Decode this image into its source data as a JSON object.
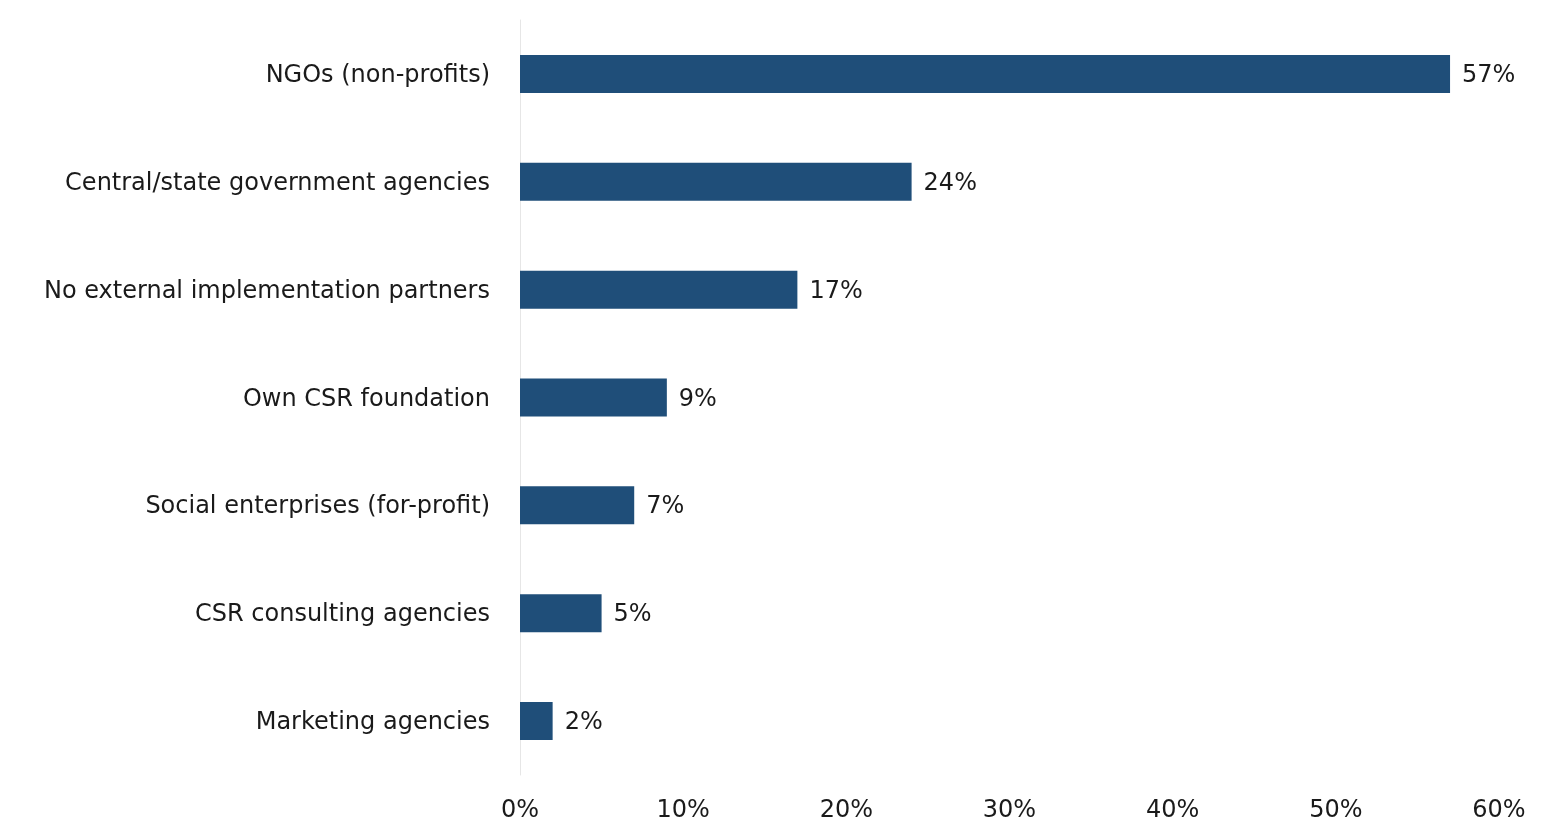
{
  "chart_data": {
    "type": "bar",
    "orientation": "horizontal",
    "categories": [
      "NGOs (non-profits)",
      "Central/state government agencies",
      "No external implementation partners",
      "Own CSR foundation",
      "Social enterprises (for-profit)",
      "CSR consulting agencies",
      "Marketing agencies"
    ],
    "values": [
      57,
      24,
      17,
      9,
      7,
      5,
      2
    ],
    "value_labels": [
      "57%",
      "24%",
      "17%",
      "9%",
      "7%",
      "5%",
      "2%"
    ],
    "color": "#1f4e79",
    "xlim": [
      0,
      60
    ],
    "xticks": [
      {
        "value": 0,
        "label": "0%"
      },
      {
        "value": 10,
        "label": "10%"
      },
      {
        "value": 20,
        "label": "20%"
      },
      {
        "value": 30,
        "label": "30%"
      },
      {
        "value": 40,
        "label": "40%"
      },
      {
        "value": 50,
        "label": "50%"
      },
      {
        "value": 60,
        "label": "60%"
      }
    ],
    "grid": false
  }
}
